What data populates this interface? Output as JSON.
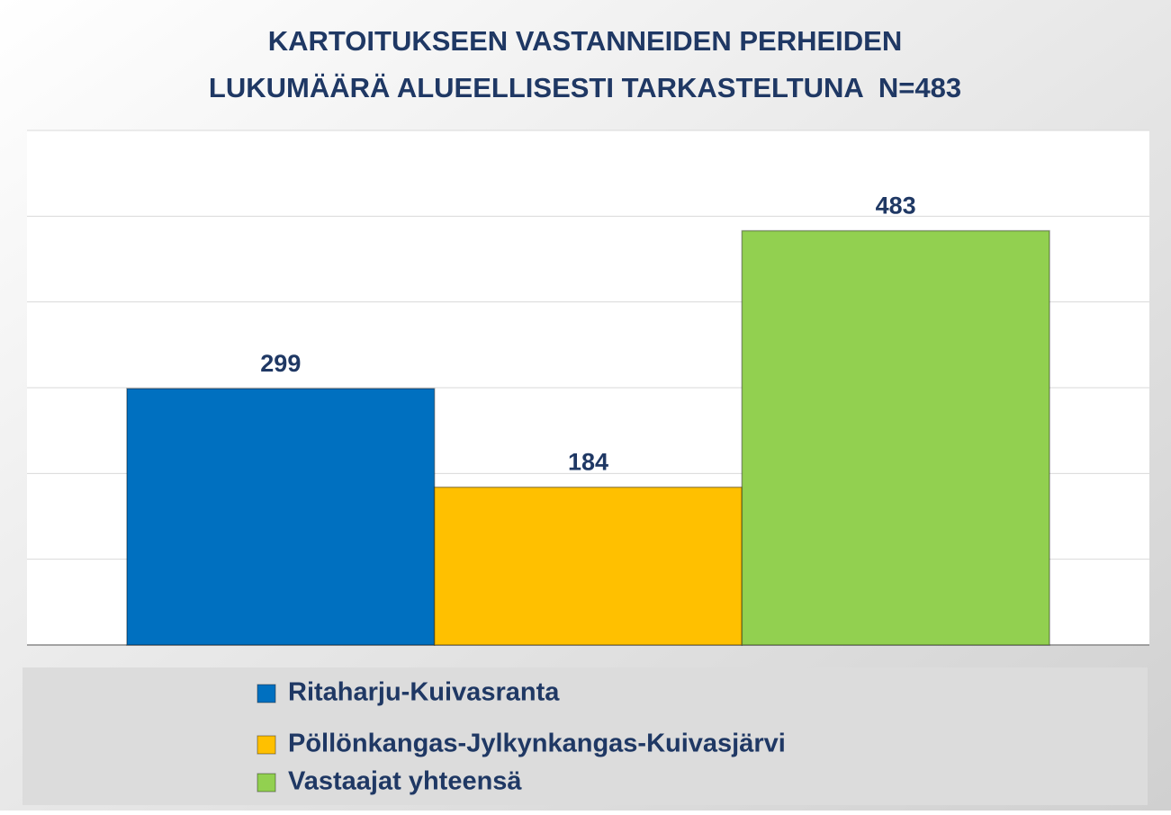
{
  "chart_data": {
    "type": "bar",
    "title": [
      "KARTOITUKSEEN VASTANNEIDEN PERHEIDEN",
      "LUKUMÄÄRÄ ALUEELLISESTI TARKASTELTUNA  N=483"
    ],
    "categories": [
      null
    ],
    "series": [
      {
        "name": "Ritaharju-Kuivasranta",
        "color": "#0070c0",
        "values": [
          299
        ]
      },
      {
        "name": "Pöllönkangas-Jylkynkangas-Kuivasjärvi",
        "color": "#ffc000",
        "values": [
          184
        ]
      },
      {
        "name": "Vastaajat yhteensä",
        "color": "#92d050",
        "values": [
          483
        ]
      }
    ],
    "ylim": [
      0,
      600
    ],
    "yticks": [
      0,
      100,
      200,
      300,
      400,
      500,
      600
    ],
    "grid": true,
    "legend": "bottom"
  }
}
